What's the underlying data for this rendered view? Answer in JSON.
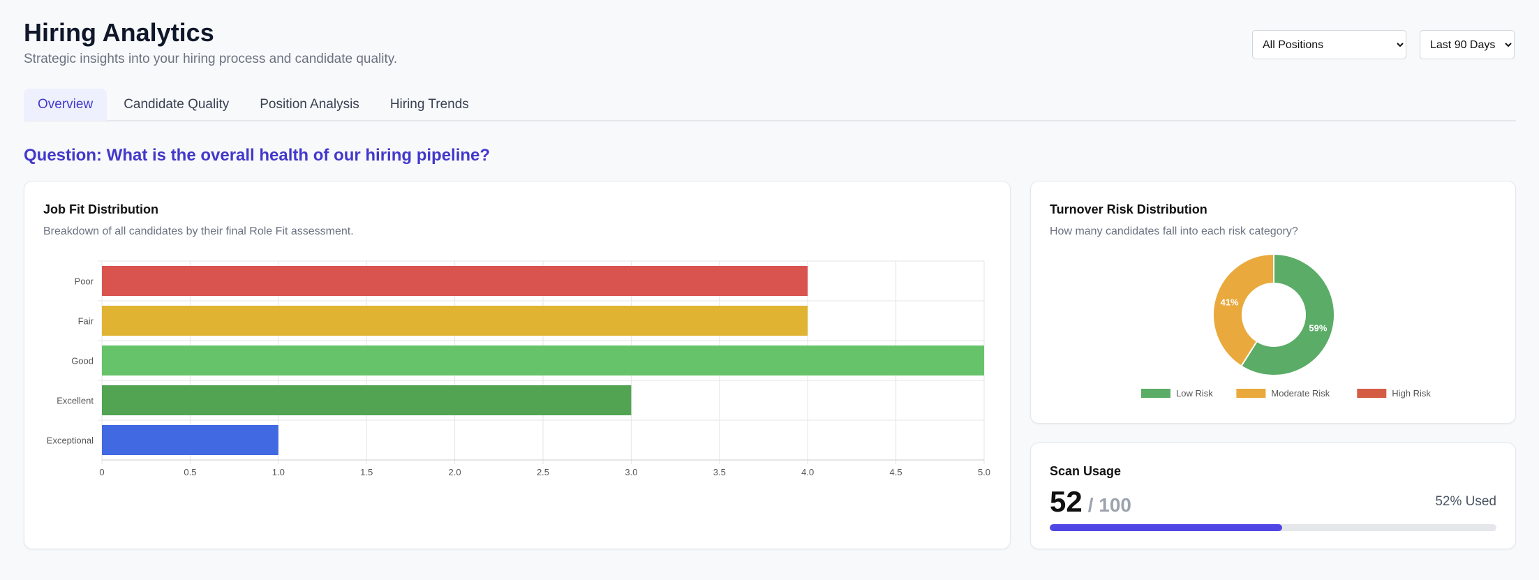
{
  "header": {
    "title": "Hiring Analytics",
    "subtitle": "Strategic insights into your hiring process and candidate quality."
  },
  "filters": {
    "position": "All Positions",
    "period": "Last 90 Days"
  },
  "tabs": [
    {
      "label": "Overview",
      "active": true
    },
    {
      "label": "Candidate Quality"
    },
    {
      "label": "Position Analysis"
    },
    {
      "label": "Hiring Trends"
    }
  ],
  "question": "Question: What is the overall health of our hiring pipeline?",
  "job_fit": {
    "title": "Job Fit Distribution",
    "subtitle": "Breakdown of all candidates by their final Role Fit assessment."
  },
  "turnover": {
    "title": "Turnover Risk Distribution",
    "subtitle": "How many candidates fall into each risk category?"
  },
  "scan": {
    "title": "Scan Usage",
    "used": "52",
    "total": "/ 100",
    "percent_label": "52% Used",
    "percent": 52,
    "color": "#4f46e5"
  },
  "chart_data": [
    {
      "type": "bar",
      "orientation": "horizontal",
      "categories": [
        "Poor",
        "Fair",
        "Good",
        "Excellent",
        "Exceptional"
      ],
      "values": [
        4,
        4,
        5,
        3,
        1
      ],
      "colors": [
        "#d9534f",
        "#e0b432",
        "#66c36a",
        "#52a352",
        "#4169e1"
      ],
      "xlim": [
        0,
        5
      ],
      "xticks": [
        "0",
        "0.5",
        "1.0",
        "1.5",
        "2.0",
        "2.5",
        "3.0",
        "3.5",
        "4.0",
        "4.5",
        "5.0"
      ],
      "grid": true
    },
    {
      "type": "pie",
      "variant": "donut",
      "categories": [
        "Low Risk",
        "Moderate Risk",
        "High Risk"
      ],
      "values": [
        59,
        41,
        0
      ],
      "labels": [
        "59%",
        "41%",
        ""
      ],
      "colors": [
        "#5aac66",
        "#e9a93c",
        "#d45c44"
      ],
      "legend": "bottom"
    }
  ]
}
